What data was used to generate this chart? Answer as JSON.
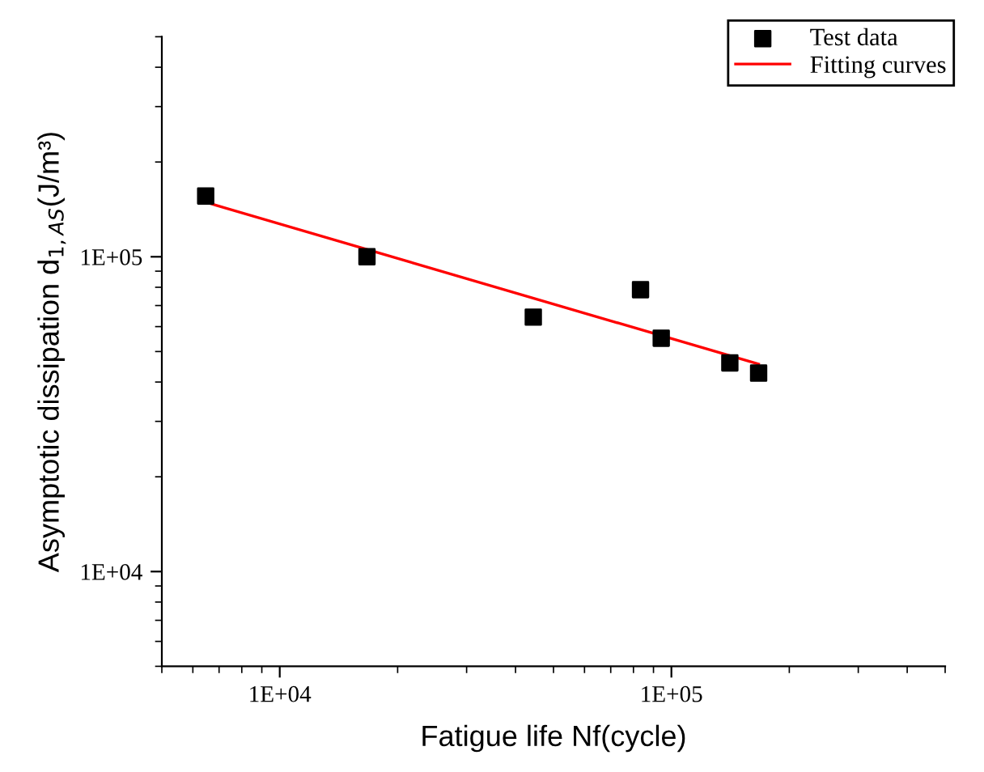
{
  "chart_data": {
    "type": "scatter",
    "xlabel": "Fatigue life Nf(cycle)",
    "ylabel": "Asymptotic dissipation d$_{1,AS}$(J/m³)",
    "log": "xy",
    "xlim": [
      5000,
      500000
    ],
    "ylim": [
      5000,
      500000
    ],
    "xticks": [
      {
        "value": 10000,
        "label": "1E+04"
      },
      {
        "value": 100000,
        "label": "1E+05"
      }
    ],
    "yticks": [
      {
        "value": 10000,
        "label": "1E+04"
      },
      {
        "value": 100000,
        "label": "1E+05"
      }
    ],
    "grid": false,
    "legend": "top right",
    "series": [
      {
        "name": "Test data",
        "marker": "square",
        "color": "#000000",
        "x": [
          6470,
          16700,
          44400,
          83400,
          94200,
          141000,
          167000
        ],
        "values": [
          156000,
          100000,
          64300,
          78600,
          55100,
          46000,
          42700
        ]
      },
      {
        "name": "Fitting curves",
        "type": "line",
        "marker": "none",
        "line_style": "solid",
        "color": "#ff0000",
        "x": [
          6470,
          167000
        ],
        "values": [
          149000,
          45600
        ]
      }
    ]
  }
}
